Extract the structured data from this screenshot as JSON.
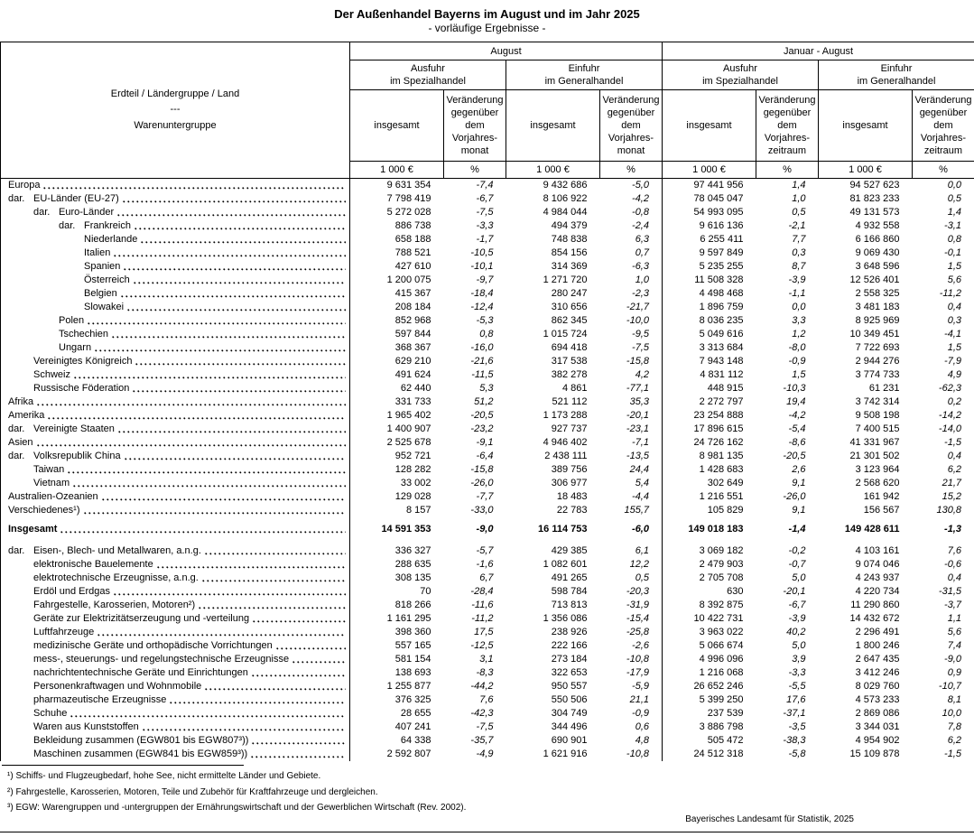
{
  "title": "Der Außenhandel Bayerns im August und im Jahr 2025",
  "subtitle": "- vorläufige Ergebnisse -",
  "header": {
    "col_head_line1": "Erdteil / Ländergruppe / Land",
    "col_head_sep": "---",
    "col_head_line2": "Warenuntergruppe",
    "period_august": "August",
    "period_jan_aug": "Januar - August",
    "ausfuhr": "Ausfuhr\nim Spezialhandel",
    "einfuhr": "Einfuhr\nim Generalhandel",
    "insgesamt": "insgesamt",
    "change_month": "Veränderung\ngegenüber\ndem\nVorjahres-\nmonat",
    "change_period": "Veränderung\ngegenüber\ndem\nVorjahres-\nzeitraum",
    "unit_value": "1 000 €",
    "unit_pct": "%"
  },
  "table": {
    "region_rows": [
      {
        "label": "Europa",
        "dar": false,
        "indent": 0,
        "values": [
          "9 631 354",
          "-7,4",
          "9 432 686",
          "-5,0",
          "97 441 956",
          "1,4",
          "94 527 623",
          "0,0"
        ]
      },
      {
        "label": "EU-Länder (EU-27)",
        "dar": true,
        "indent": 0,
        "values": [
          "7 798 419",
          "-6,7",
          "8 106 922",
          "-4,2",
          "78 045 047",
          "1,0",
          "81 823 233",
          "0,5"
        ]
      },
      {
        "label": "Euro-Länder",
        "dar": true,
        "indent": 1,
        "values": [
          "5 272 028",
          "-7,5",
          "4 984 044",
          "-0,8",
          "54 993 095",
          "0,5",
          "49 131 573",
          "1,4"
        ]
      },
      {
        "label": "Frankreich",
        "dar": true,
        "indent": 2,
        "values": [
          "886 738",
          "-3,3",
          "494 379",
          "-2,4",
          "9 616 136",
          "-2,1",
          "4 932 558",
          "-3,1"
        ]
      },
      {
        "label": "Niederlande",
        "dar": false,
        "indent": 3,
        "values": [
          "658 188",
          "-1,7",
          "748 838",
          "6,3",
          "6 255 411",
          "7,7",
          "6 166 860",
          "0,8"
        ]
      },
      {
        "label": "Italien",
        "dar": false,
        "indent": 3,
        "values": [
          "788 521",
          "-10,5",
          "854 156",
          "0,7",
          "9 597 849",
          "0,3",
          "9 069 430",
          "-0,1"
        ]
      },
      {
        "label": "Spanien",
        "dar": false,
        "indent": 3,
        "values": [
          "427 610",
          "-10,1",
          "314 369",
          "-6,3",
          "5 235 255",
          "8,7",
          "3 648 596",
          "1,5"
        ]
      },
      {
        "label": "Österreich",
        "dar": false,
        "indent": 3,
        "values": [
          "1 200 075",
          "-9,7",
          "1 271 720",
          "1,0",
          "11 508 328",
          "-3,9",
          "12 526 401",
          "5,6"
        ]
      },
      {
        "label": "Belgien",
        "dar": false,
        "indent": 3,
        "values": [
          "415 367",
          "-18,4",
          "280 247",
          "-2,3",
          "4 498 468",
          "-1,1",
          "2 558 325",
          "-11,2"
        ]
      },
      {
        "label": "Slowakei",
        "dar": false,
        "indent": 3,
        "values": [
          "208 184",
          "-12,4",
          "310 656",
          "-21,7",
          "1 896 759",
          "0,0",
          "3 481 183",
          "0,4"
        ]
      },
      {
        "label": "Polen",
        "dar": false,
        "indent": 2,
        "values": [
          "852 968",
          "-5,3",
          "862 345",
          "-10,0",
          "8 036 235",
          "3,3",
          "8 925 969",
          "0,3"
        ]
      },
      {
        "label": "Tschechien",
        "dar": false,
        "indent": 2,
        "values": [
          "597 844",
          "0,8",
          "1 015 724",
          "-9,5",
          "5 049 616",
          "1,2",
          "10 349 451",
          "-4,1"
        ]
      },
      {
        "label": "Ungarn",
        "dar": false,
        "indent": 2,
        "values": [
          "368 367",
          "-16,0",
          "694 418",
          "-7,5",
          "3 313 684",
          "-8,0",
          "7 722 693",
          "1,5"
        ]
      },
      {
        "label": "Vereinigtes Königreich",
        "dar": false,
        "indent": 1,
        "values": [
          "629 210",
          "-21,6",
          "317 538",
          "-15,8",
          "7 943 148",
          "-0,9",
          "2 944 276",
          "-7,9"
        ]
      },
      {
        "label": "Schweiz",
        "dar": false,
        "indent": 1,
        "values": [
          "491 624",
          "-11,5",
          "382 278",
          "4,2",
          "4 831 112",
          "1,5",
          "3 774 733",
          "4,9"
        ]
      },
      {
        "label": "Russische Föderation",
        "dar": false,
        "indent": 1,
        "values": [
          "62 440",
          "5,3",
          "4 861",
          "-77,1",
          "448 915",
          "-10,3",
          "61 231",
          "-62,3"
        ]
      },
      {
        "label": "Afrika",
        "dar": false,
        "indent": 0,
        "values": [
          "331 733",
          "51,2",
          "521 112",
          "35,3",
          "2 272 797",
          "19,4",
          "3 742 314",
          "0,2"
        ]
      },
      {
        "label": "Amerika",
        "dar": false,
        "indent": 0,
        "values": [
          "1 965 402",
          "-20,5",
          "1 173 288",
          "-20,1",
          "23 254 888",
          "-4,2",
          "9 508 198",
          "-14,2"
        ]
      },
      {
        "label": "Vereinigte Staaten",
        "dar": true,
        "indent": 0,
        "values": [
          "1 400 907",
          "-23,2",
          "927 737",
          "-23,1",
          "17 896 615",
          "-5,4",
          "7 400 515",
          "-14,0"
        ]
      },
      {
        "label": "Asien",
        "dar": false,
        "indent": 0,
        "values": [
          "2 525 678",
          "-9,1",
          "4 946 402",
          "-7,1",
          "24 726 162",
          "-8,6",
          "41 331 967",
          "-1,5"
        ]
      },
      {
        "label": "Volksrepublik China",
        "dar": true,
        "indent": 0,
        "values": [
          "952 721",
          "-6,4",
          "2 438 111",
          "-13,5",
          "8 981 135",
          "-20,5",
          "21 301 502",
          "0,4"
        ]
      },
      {
        "label": "Taiwan",
        "dar": false,
        "indent": 1,
        "values": [
          "128 282",
          "-15,8",
          "389 756",
          "24,4",
          "1 428 683",
          "2,6",
          "3 123 964",
          "6,2"
        ]
      },
      {
        "label": "Vietnam",
        "dar": false,
        "indent": 1,
        "values": [
          "33 002",
          "-26,0",
          "306 977",
          "5,4",
          "302 649",
          "9,1",
          "2 568 620",
          "21,7"
        ]
      },
      {
        "label": "Australien-Ozeanien",
        "dar": false,
        "indent": 0,
        "values": [
          "129 028",
          "-7,7",
          "18 483",
          "-4,4",
          "1 216 551",
          "-26,0",
          "161 942",
          "15,2"
        ]
      },
      {
        "label": "Verschiedenes¹)",
        "dar": false,
        "indent": 0,
        "values": [
          "8 157",
          "-33,0",
          "22 783",
          "155,7",
          "105 829",
          "9,1",
          "156 567",
          "130,8"
        ]
      }
    ],
    "total_row": {
      "label": "Insgesamt",
      "dar": false,
      "indent": 0,
      "values": [
        "14 591 353",
        "-9,0",
        "16 114 753",
        "-6,0",
        "149 018 183",
        "-1,4",
        "149 428 611",
        "-1,3"
      ]
    },
    "commodity_rows": [
      {
        "label": "Eisen-, Blech- und Metallwaren, a.n.g.",
        "dar": true,
        "indent": 0,
        "values": [
          "336 327",
          "-5,7",
          "429 385",
          "6,1",
          "3 069 182",
          "-0,2",
          "4 103 161",
          "7,6"
        ]
      },
      {
        "label": "elektronische Bauelemente",
        "dar": false,
        "indent": 1,
        "values": [
          "288 635",
          "-1,6",
          "1 082 601",
          "12,2",
          "2 479 903",
          "-0,7",
          "9 074 046",
          "-0,6"
        ]
      },
      {
        "label": "elektrotechnische Erzeugnisse, a.n.g.",
        "dar": false,
        "indent": 1,
        "values": [
          "308 135",
          "6,7",
          "491 265",
          "0,5",
          "2 705 708",
          "5,0",
          "4 243 937",
          "0,4"
        ]
      },
      {
        "label": "Erdöl und Erdgas",
        "dar": false,
        "indent": 1,
        "values": [
          "70",
          "-28,4",
          "598 784",
          "-20,3",
          "630",
          "-20,1",
          "4 220 734",
          "-31,5"
        ]
      },
      {
        "label": "Fahrgestelle, Karosserien, Motoren²)",
        "dar": false,
        "indent": 1,
        "values": [
          "818 266",
          "-11,6",
          "713 813",
          "-31,9",
          "8 392 875",
          "-6,7",
          "11 290 860",
          "-3,7"
        ]
      },
      {
        "label": "Geräte zur Elektrizitätserzeugung und -verteilung",
        "dar": false,
        "indent": 1,
        "values": [
          "1 161 295",
          "-11,2",
          "1 356 086",
          "-15,4",
          "10 422 731",
          "-3,9",
          "14 432 672",
          "1,1"
        ]
      },
      {
        "label": "Luftfahrzeuge",
        "dar": false,
        "indent": 1,
        "values": [
          "398 360",
          "17,5",
          "238 926",
          "-25,8",
          "3 963 022",
          "40,2",
          "2 296 491",
          "5,6"
        ]
      },
      {
        "label": "medizinische Geräte und orthopädische Vorrichtungen",
        "dar": false,
        "indent": 1,
        "values": [
          "557 165",
          "-12,5",
          "222 166",
          "-2,6",
          "5 066 674",
          "5,0",
          "1 800 246",
          "7,4"
        ]
      },
      {
        "label": "mess-, steuerungs- und regelungstechnische Erzeugnisse",
        "dar": false,
        "indent": 1,
        "values": [
          "581 154",
          "3,1",
          "273 184",
          "-10,8",
          "4 996 096",
          "3,9",
          "2 647 435",
          "-9,0"
        ]
      },
      {
        "label": "nachrichtentechnische Geräte und Einrichtungen",
        "dar": false,
        "indent": 1,
        "values": [
          "138 693",
          "-8,3",
          "322 653",
          "-17,9",
          "1 216 068",
          "-3,3",
          "3 412 246",
          "0,9"
        ]
      },
      {
        "label": "Personenkraftwagen und Wohnmobile",
        "dar": false,
        "indent": 1,
        "values": [
          "1 255 877",
          "-44,2",
          "950 557",
          "-5,9",
          "26 652 246",
          "-5,5",
          "8 029 760",
          "-10,7"
        ]
      },
      {
        "label": "pharmazeutische Erzeugnisse",
        "dar": false,
        "indent": 1,
        "values": [
          "376 325",
          "7,6",
          "550 506",
          "21,1",
          "5 399 250",
          "17,6",
          "4 573 233",
          "8,1"
        ]
      },
      {
        "label": "Schuhe",
        "dar": false,
        "indent": 1,
        "values": [
          "28 655",
          "-42,3",
          "304 749",
          "-0,9",
          "237 539",
          "-37,1",
          "2 869 086",
          "10,0"
        ]
      },
      {
        "label": "Waren aus Kunststoffen",
        "dar": false,
        "indent": 1,
        "values": [
          "407 241",
          "-7,5",
          "344 496",
          "0,6",
          "3 886 798",
          "-3,5",
          "3 344 031",
          "7,8"
        ]
      },
      {
        "label": "Bekleidung zusammen (EGW801 bis EGW807³))",
        "dar": false,
        "indent": 1,
        "values": [
          "64 338",
          "-35,7",
          "690 901",
          "4,8",
          "505 472",
          "-38,3",
          "4 954 902",
          "6,2"
        ]
      },
      {
        "label": "Maschinen zusammen (EGW841 bis EGW859³))",
        "dar": false,
        "indent": 1,
        "values": [
          "2 592 807",
          "-4,9",
          "1 621 916",
          "-10,8",
          "24 512 318",
          "-5,8",
          "15 109 878",
          "-1,5"
        ]
      }
    ]
  },
  "footnotes": [
    "¹) Schiffs- und Flugzeugbedarf, hohe See, nicht ermittelte Länder und Gebiete.",
    "²) Fahrgestelle, Karosserien, Motoren, Teile und Zubehör für Kraftfahrzeuge und dergleichen.",
    "³) EGW: Warengruppen und -untergruppen der Ernährungswirtschaft und der Gewerblichen Wirtschaft (Rev. 2002)."
  ],
  "source": "Bayerisches Landesamt für Statistik, 2025"
}
